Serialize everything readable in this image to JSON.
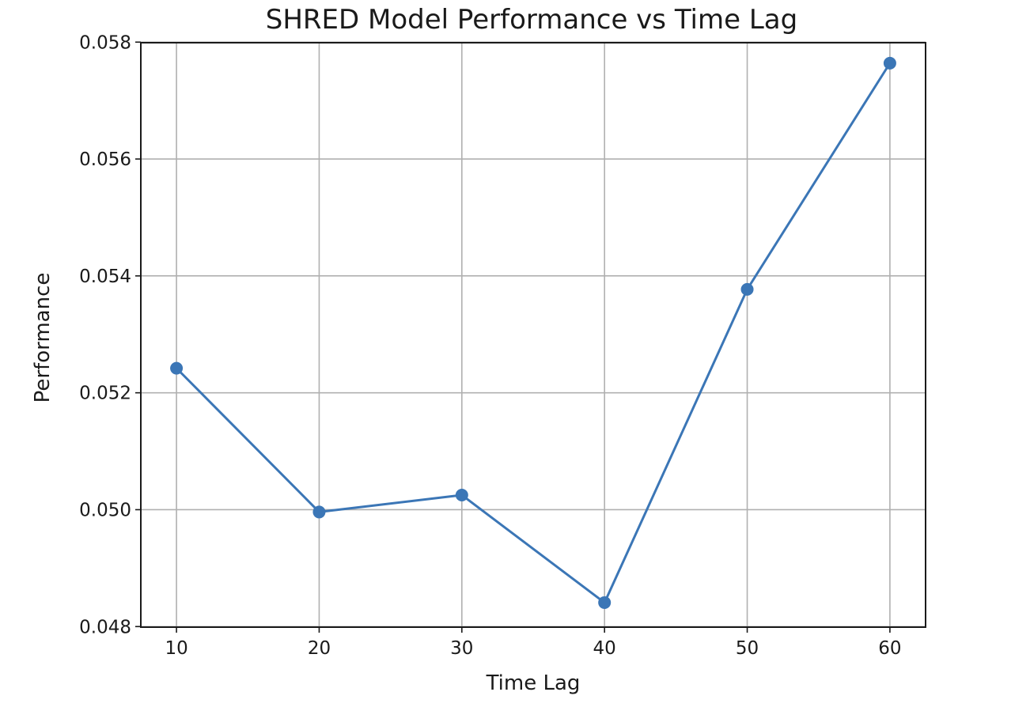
{
  "chart_data": {
    "type": "line",
    "title": "SHRED Model Performance vs Time Lag",
    "xlabel": "Time Lag",
    "ylabel": "Performance",
    "x": [
      10,
      20,
      30,
      40,
      50,
      60
    ],
    "series": [
      {
        "values": [
          0.05242,
          0.04996,
          0.05025,
          0.04841,
          0.05377,
          0.05764
        ]
      }
    ],
    "xticks": [
      "10",
      "20",
      "30",
      "40",
      "50",
      "60"
    ],
    "yticks": [
      "0.048",
      "0.050",
      "0.052",
      "0.054",
      "0.056",
      "0.058"
    ],
    "xlim": [
      7.5,
      62.5
    ],
    "ylim": [
      0.04799,
      0.05799
    ],
    "grid": true,
    "line_color": "#3b76b6",
    "marker": "circle"
  }
}
